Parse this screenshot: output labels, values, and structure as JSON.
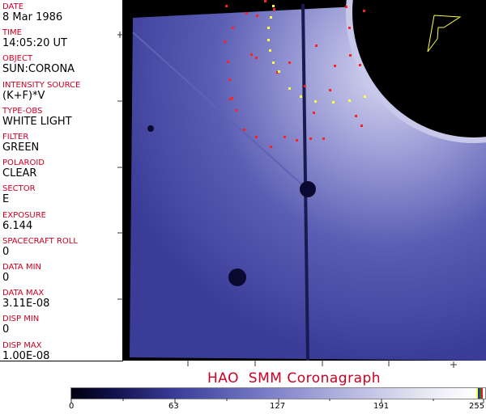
{
  "header_fields": [
    {
      "label": "DATE",
      "value": "8 Mar 1986"
    },
    {
      "label": "TIME",
      "value": "14:05:20 UT"
    },
    {
      "label": "OBJECT",
      "value": "SUN:CORONA"
    },
    {
      "label": "INTENSITY SOURCE",
      "value": "(K+F)*V"
    },
    {
      "label": "TYPE-OBS",
      "value": "WHITE LIGHT"
    },
    {
      "label": "FILTER",
      "value": "GREEN"
    },
    {
      "label": "POLAROID",
      "value": "CLEAR"
    },
    {
      "label": "SECTOR",
      "value": "E"
    },
    {
      "label": "EXPOSURE",
      "value": "6.144"
    },
    {
      "label": "SPACECRAFT ROLL",
      "value": "0"
    },
    {
      "label": "DATA MIN",
      "value": "0"
    },
    {
      "label": "DATA MAX",
      "value": "3.11E-08"
    },
    {
      "label": "DISP MIN",
      "value": "0"
    },
    {
      "label": "DISP MAX",
      "value": "1.00E-08"
    }
  ],
  "title": "HAO  SMM Coronagraph",
  "colorbar": {
    "labels": [
      "0",
      "63",
      "127",
      "191",
      "255"
    ],
    "colormap": "black-blue-white"
  },
  "colors": {
    "label": "#cc0022",
    "grid_red": "#ff2020",
    "grid_yellow": "#ffff40"
  }
}
